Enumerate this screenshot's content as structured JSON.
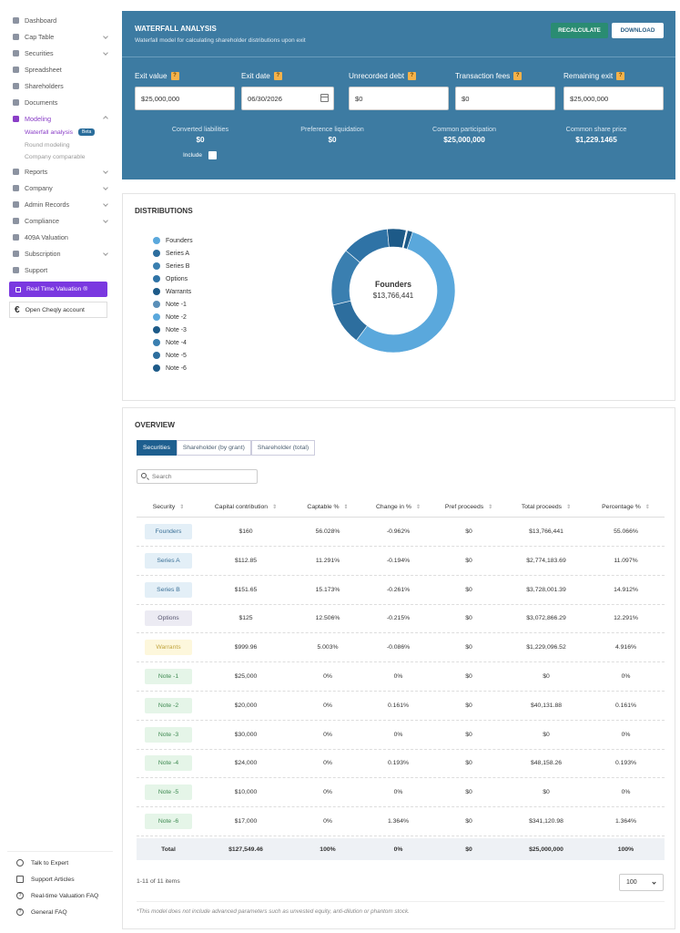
{
  "sidebar": {
    "items": [
      {
        "label": "Dashboard",
        "icon": "dashboard-icon"
      },
      {
        "label": "Cap Table",
        "icon": "cap-table-icon"
      },
      {
        "label": "Securities",
        "icon": "securities-icon"
      },
      {
        "label": "Spreadsheet",
        "icon": "spreadsheet-icon"
      },
      {
        "label": "Shareholders",
        "icon": "shareholders-icon"
      },
      {
        "label": "Documents",
        "icon": "documents-icon"
      },
      {
        "label": "Modeling",
        "icon": "modeling-icon"
      },
      {
        "label": "Reports",
        "icon": "reports-icon"
      },
      {
        "label": "Company",
        "icon": "company-icon"
      },
      {
        "label": "Admin Records",
        "icon": "admin-records-icon"
      },
      {
        "label": "Compliance",
        "icon": "compliance-icon"
      },
      {
        "label": "409A Valuation",
        "icon": "valuation-icon"
      },
      {
        "label": "Subscription",
        "icon": "subscription-icon"
      },
      {
        "label": "Support",
        "icon": "support-icon"
      }
    ],
    "modeling_sub": [
      "Waterfall analysis",
      "Round modeling",
      "Company comparable"
    ],
    "beta_badge": "Beta",
    "real_time_valuation": "Real Time Valuation ®",
    "open_cheqly": "Open Cheqly account",
    "footer": [
      "Talk to Expert",
      "Support Articles",
      "Real-time Valuation FAQ",
      "General FAQ"
    ]
  },
  "waterfall": {
    "title": "WATERFALL ANALYSIS",
    "subtitle": "Waterfall model for calculating shareholder distributions upon exit",
    "recalculate": "RECALCULATE",
    "download": "DOWNLOAD",
    "help_mark": "?",
    "fields": [
      {
        "label": "Exit value",
        "value": "$25,000,000"
      },
      {
        "label": "Exit date",
        "value": "06/30/2026"
      },
      {
        "label": "Unrecorded debt",
        "value": "$0"
      },
      {
        "label": "Transaction fees",
        "value": "$0"
      },
      {
        "label": "Remaining exit",
        "value": "$25,000,000"
      }
    ],
    "summary": [
      {
        "label": "Converted liabilities",
        "value": "$0"
      },
      {
        "label": "Preference liquidation",
        "value": "$0"
      },
      {
        "label": "Common participation",
        "value": "$25,000,000"
      },
      {
        "label": "Common share price",
        "value": "$1,229.1465"
      }
    ],
    "include_label": "Include"
  },
  "distributions": {
    "title": "DISTRIBUTIONS",
    "legend": [
      {
        "name": "Founders",
        "color": "#5aa8dc"
      },
      {
        "name": "Series A",
        "color": "#2d6e9e"
      },
      {
        "name": "Series B",
        "color": "#3a7fb0"
      },
      {
        "name": "Options",
        "color": "#2f73a6"
      },
      {
        "name": "Warrants",
        "color": "#1d5a88"
      },
      {
        "name": "Note -1",
        "color": "#5a8fb8"
      },
      {
        "name": "Note -2",
        "color": "#5aa8dc"
      },
      {
        "name": "Note -3",
        "color": "#1d5a88"
      },
      {
        "name": "Note -4",
        "color": "#3a7fb0"
      },
      {
        "name": "Note -5",
        "color": "#2d6e9e"
      },
      {
        "name": "Note -6",
        "color": "#1d5a88"
      }
    ],
    "center_label": "Founders",
    "center_value": "$13,766,441"
  },
  "chart_data": {
    "type": "pie",
    "categories": [
      "Founders",
      "Series A",
      "Series B",
      "Options",
      "Warrants",
      "Note -1",
      "Note -2",
      "Note -3",
      "Note -4",
      "Note -5",
      "Note -6"
    ],
    "values": [
      13766441,
      2774183.69,
      3728001.39,
      3072866.29,
      1229096.52,
      0,
      40131.88,
      0,
      48158.26,
      0,
      341120.98
    ],
    "colors": [
      "#5aa8dc",
      "#2d6e9e",
      "#3a7fb0",
      "#2f73a6",
      "#1d5a88",
      "#5a8fb8",
      "#5aa8dc",
      "#1d5a88",
      "#3a7fb0",
      "#2d6e9e",
      "#1d5a88"
    ]
  },
  "overview": {
    "title": "OVERVIEW",
    "tabs": [
      "Securities",
      "Shareholder (by grant)",
      "Shareholder (total)"
    ],
    "search_placeholder": "Search",
    "columns": [
      "Security",
      "Capital contribution",
      "Captable %",
      "Change in %",
      "Pref proceeds",
      "Total proceeds",
      "Percentage %"
    ],
    "rows": [
      {
        "security": "Founders",
        "bg": "#e3eff7",
        "fg": "#3a6f96",
        "capital": "$160",
        "captable": "56.028%",
        "change": "-0.962%",
        "pref": "$0",
        "total": "$13,766,441",
        "pct": "55.066%"
      },
      {
        "security": "Series A",
        "bg": "#e3eff7",
        "fg": "#3a6f96",
        "capital": "$112.85",
        "captable": "11.291%",
        "change": "-0.194%",
        "pref": "$0",
        "total": "$2,774,183.69",
        "pct": "11.097%"
      },
      {
        "security": "Series B",
        "bg": "#e3eff7",
        "fg": "#3a6f96",
        "capital": "$151.65",
        "captable": "15.173%",
        "change": "-0.261%",
        "pref": "$0",
        "total": "$3,728,001.39",
        "pct": "14.912%"
      },
      {
        "security": "Options",
        "bg": "#ecebf3",
        "fg": "#55536e",
        "capital": "$125",
        "captable": "12.506%",
        "change": "-0.215%",
        "pref": "$0",
        "total": "$3,072,866.29",
        "pct": "12.291%"
      },
      {
        "security": "Warrants",
        "bg": "#fdf7dc",
        "fg": "#c2a640",
        "capital": "$999.96",
        "captable": "5.003%",
        "change": "-0.086%",
        "pref": "$0",
        "total": "$1,229,096.52",
        "pct": "4.916%"
      },
      {
        "security": "Note -1",
        "bg": "#e5f5e8",
        "fg": "#3f8a52",
        "capital": "$25,000",
        "captable": "0%",
        "change": "0%",
        "pref": "$0",
        "total": "$0",
        "pct": "0%"
      },
      {
        "security": "Note -2",
        "bg": "#e5f5e8",
        "fg": "#3f8a52",
        "capital": "$20,000",
        "captable": "0%",
        "change": "0.161%",
        "pref": "$0",
        "total": "$40,131.88",
        "pct": "0.161%"
      },
      {
        "security": "Note -3",
        "bg": "#e5f5e8",
        "fg": "#3f8a52",
        "capital": "$30,000",
        "captable": "0%",
        "change": "0%",
        "pref": "$0",
        "total": "$0",
        "pct": "0%"
      },
      {
        "security": "Note -4",
        "bg": "#e5f5e8",
        "fg": "#3f8a52",
        "capital": "$24,000",
        "captable": "0%",
        "change": "0.193%",
        "pref": "$0",
        "total": "$48,158.26",
        "pct": "0.193%"
      },
      {
        "security": "Note -5",
        "bg": "#e5f5e8",
        "fg": "#3f8a52",
        "capital": "$10,000",
        "captable": "0%",
        "change": "0%",
        "pref": "$0",
        "total": "$0",
        "pct": "0%"
      },
      {
        "security": "Note -6",
        "bg": "#e5f5e8",
        "fg": "#3f8a52",
        "capital": "$17,000",
        "captable": "0%",
        "change": "1.364%",
        "pref": "$0",
        "total": "$341,120.98",
        "pct": "1.364%"
      }
    ],
    "total": {
      "security": "Total",
      "capital": "$127,549.46",
      "captable": "100%",
      "change": "0%",
      "pref": "$0",
      "total": "$25,000,000",
      "pct": "100%"
    },
    "items_count": "1-11 of 11 items",
    "page_size": "100",
    "disclaimer": "*This model does not include advanced parameters such as unvested equity, anti-dilution or phantom stock."
  }
}
